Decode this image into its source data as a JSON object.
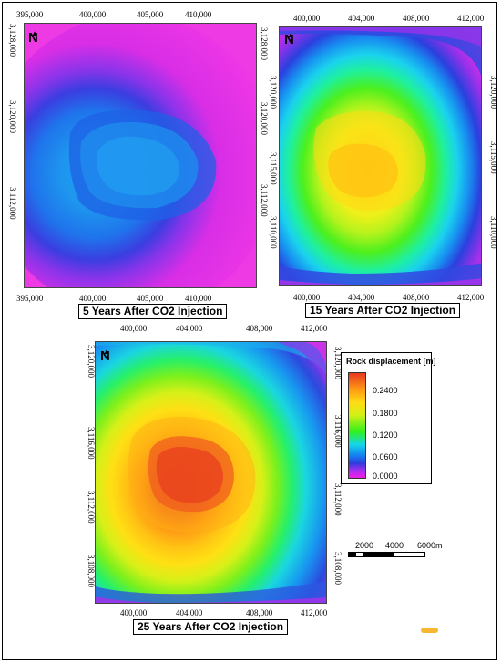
{
  "maps": [
    {
      "title": "5 Years After CO2 Injection",
      "north_label": "N",
      "x_ticks": [
        "395,000",
        "400,000",
        "405,000",
        "410,000"
      ],
      "y_ticks": [
        "3,128,000",
        "3,120,000",
        "3,112,000"
      ],
      "y_ticks_right": [
        "3,128,000",
        "3,120,000",
        "3,112,000"
      ]
    },
    {
      "title": "15 Years After CO2 Injection",
      "north_label": "N",
      "x_ticks": [
        "400,000",
        "404,000",
        "408,000",
        "412,000"
      ],
      "y_ticks": [
        "3,120,000",
        "3,115,000",
        "3,110,000"
      ],
      "y_ticks_right": [
        "3,120,000",
        "3,115,000",
        "3,110,000"
      ]
    },
    {
      "title": "25 Years After CO2 Injection",
      "north_label": "N",
      "x_ticks": [
        "400,000",
        "404,000",
        "408,000",
        "412,000"
      ],
      "y_ticks": [
        "3,120,000",
        "3,116,000",
        "3,112,000",
        "3,108,000"
      ],
      "y_ticks_right": [
        "3,120,000",
        "3,116,000",
        "3,112,000",
        "3,108,000"
      ]
    }
  ],
  "legend": {
    "title": "Rock displacement [m]",
    "labels": [
      "0.2400",
      "0.1800",
      "0.1200",
      "0.0600",
      "0.0000"
    ]
  },
  "scale_bar": {
    "labels": [
      "2000",
      "4000",
      "6000m"
    ]
  },
  "colors": {
    "magenta": "#f01ee6",
    "blue": "#1486f0",
    "green": "#2ff01d",
    "yellow": "#ffdc14",
    "orange": "#ff9c14",
    "red": "#e83820"
  }
}
